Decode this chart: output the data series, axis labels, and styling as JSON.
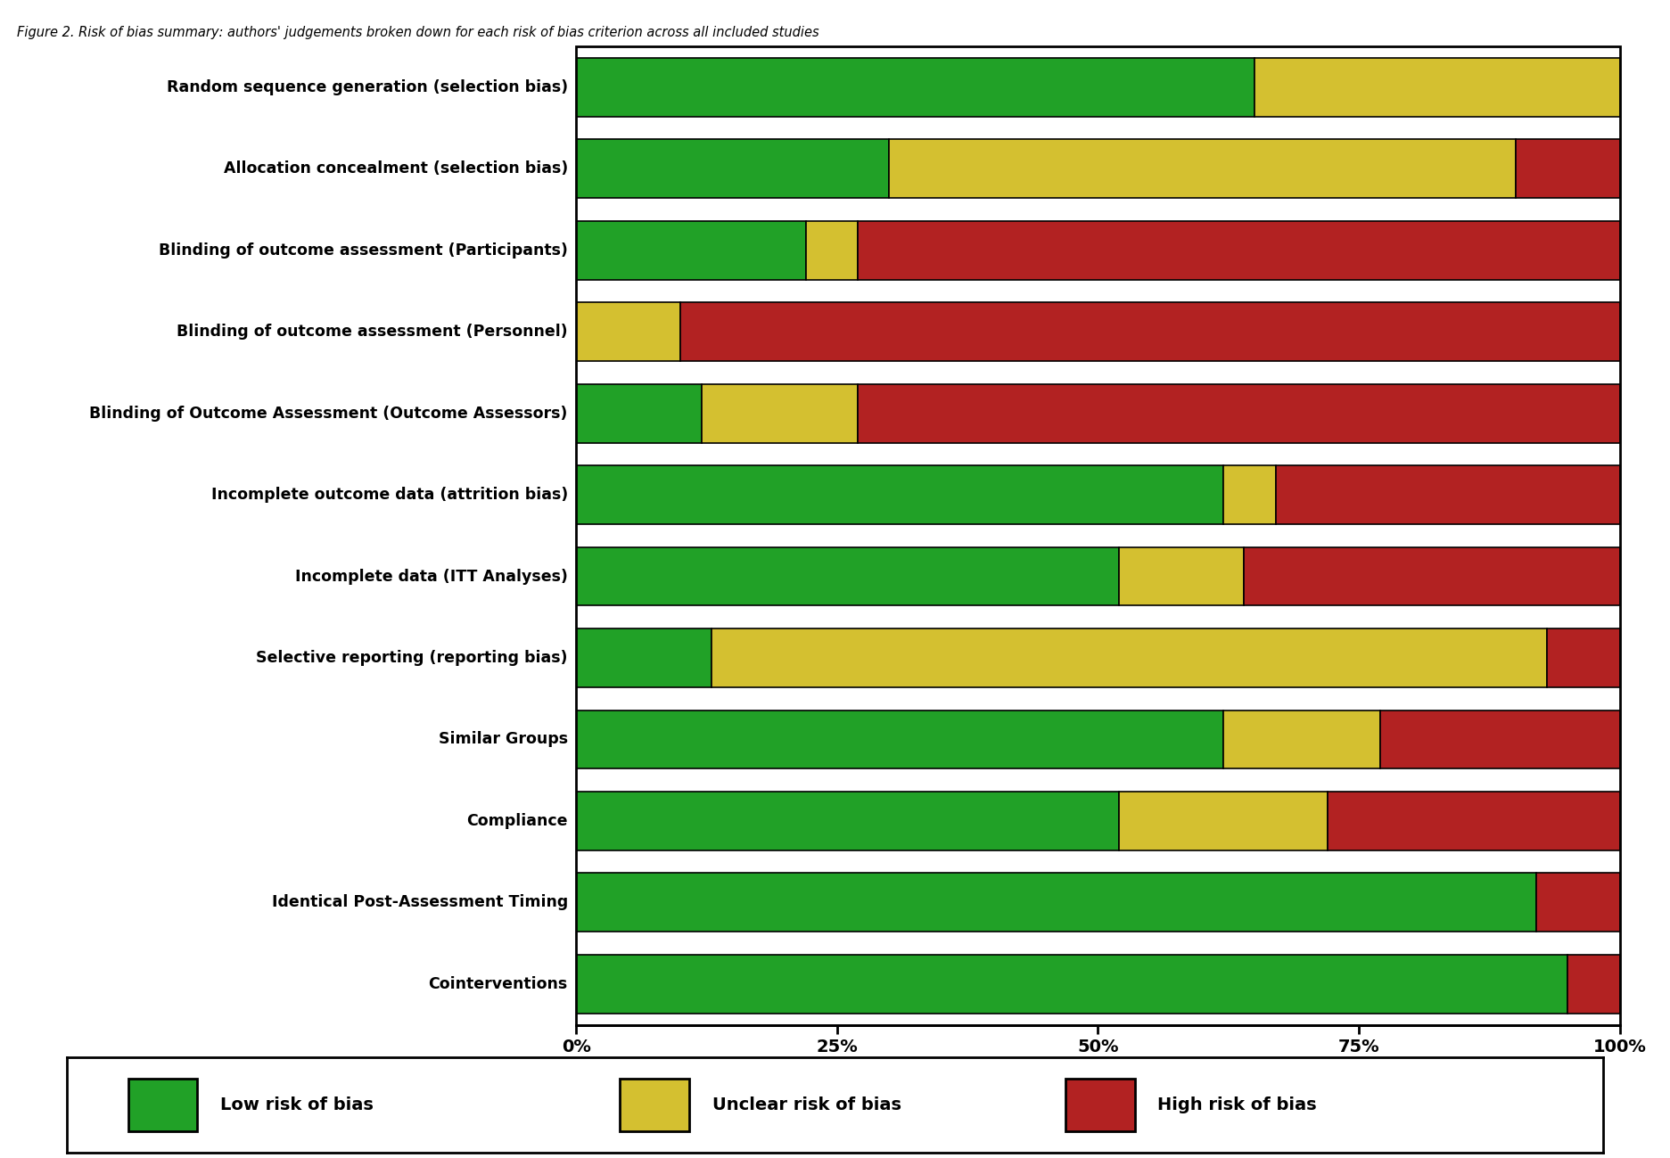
{
  "title": "Figure 2. Risk of bias summary: authors' judgements broken down for each risk of bias criterion across all included studies",
  "categories": [
    "Random sequence generation (selection bias)",
    "Allocation concealment (selection bias)",
    "Blinding of outcome assessment (Participants)",
    "Blinding of outcome assessment (Personnel)",
    "Blinding of Outcome Assessment (Outcome Assessors)",
    "Incomplete outcome data (attrition bias)",
    "Incomplete data (ITT Analyses)",
    "Selective reporting (reporting bias)",
    "Similar Groups",
    "Compliance",
    "Identical Post-Assessment Timing",
    "Cointerventions"
  ],
  "low_risk": [
    65,
    30,
    22,
    0,
    12,
    62,
    52,
    13,
    62,
    52,
    92,
    95
  ],
  "unclear_risk": [
    35,
    60,
    5,
    10,
    15,
    5,
    12,
    80,
    15,
    20,
    0,
    0
  ],
  "high_risk": [
    0,
    10,
    73,
    90,
    73,
    33,
    36,
    7,
    23,
    28,
    8,
    5
  ],
  "colors": {
    "low": "#21A127",
    "unclear": "#D4C030",
    "high": "#B22222",
    "background": "#FFFFFF",
    "border": "#000000"
  },
  "legend_labels": [
    "Low risk of bias",
    "Unclear risk of bias",
    "High risk of bias"
  ],
  "fig_width": 18.73,
  "fig_height": 12.99,
  "dpi": 100
}
